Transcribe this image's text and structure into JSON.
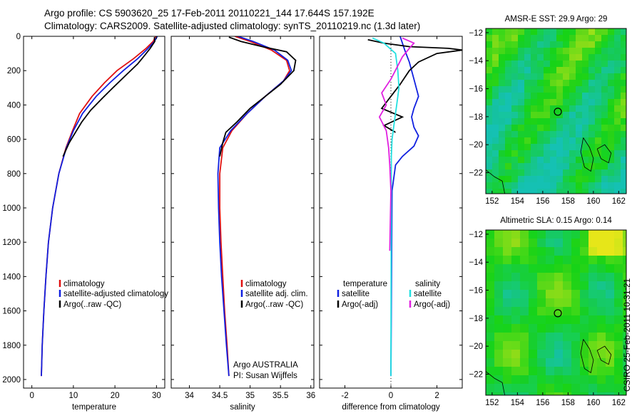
{
  "header": {
    "line1": "Argo profile: CS 5903620_25 17-Feb-2011 20110221_144 17.644S 157.192E",
    "line2": "Climatology: CARS2009. Satellite-adjusted climatology: synTS_20110219.nc (1.3d later)"
  },
  "stamp": "CSIRO 25-Feb-2011 10:31:21",
  "colors": {
    "climatology": "#e01010",
    "satellite": "#1020e0",
    "argo": "#000000",
    "salinity_sat": "#22e0e0",
    "salinity_argo": "#e020e0"
  },
  "chart_data": [
    {
      "type": "line",
      "id": "temperature",
      "xlabel": "temperature",
      "ylabel": "",
      "xlim": [
        -2,
        32
      ],
      "ylim": [
        2050,
        0
      ],
      "xticks": [
        0,
        10,
        20,
        30
      ],
      "yticks": [
        0,
        200,
        400,
        600,
        800,
        1000,
        1200,
        1400,
        1600,
        1800,
        2000
      ],
      "legend": [
        "climatology",
        "satellite-adjusted climatology",
        "Argo(..raw -QC)"
      ],
      "series": [
        {
          "name": "climatology",
          "color": "#e01010",
          "x": [
            29.8,
            29.2,
            27.5,
            24.5,
            20.5,
            17.5,
            14.5,
            11.5,
            9.8,
            8.2,
            6.5,
            5.0,
            4.0,
            3.4,
            2.9,
            2.5,
            2.3
          ],
          "y": [
            0,
            30,
            70,
            130,
            200,
            270,
            350,
            450,
            550,
            650,
            800,
            1000,
            1200,
            1400,
            1600,
            1800,
            1980
          ]
        },
        {
          "name": "satellite",
          "color": "#1020e0",
          "x": [
            30.2,
            29.5,
            28.0,
            25.5,
            22.0,
            18.8,
            15.5,
            12.2,
            10.0,
            8.3,
            6.5,
            5.0,
            4.0,
            3.4,
            2.9,
            2.5,
            2.3
          ],
          "y": [
            0,
            30,
            70,
            130,
            200,
            270,
            350,
            450,
            550,
            650,
            800,
            1000,
            1200,
            1400,
            1600,
            1800,
            1980
          ]
        },
        {
          "name": "argo",
          "color": "#000000",
          "x": [
            29.5,
            29.6,
            28.5,
            27.2,
            25.5,
            22.5,
            19.5,
            17.0,
            14.2,
            12.0,
            10.5,
            9.0,
            7.5
          ],
          "y": [
            5,
            30,
            70,
            110,
            160,
            230,
            300,
            360,
            430,
            500,
            560,
            620,
            700
          ]
        }
      ]
    },
    {
      "type": "line",
      "id": "salinity",
      "xlabel": "salinity",
      "ylabel": "",
      "xlim": [
        33.7,
        36.05
      ],
      "ylim": [
        2050,
        0
      ],
      "xticks": [
        34,
        34.5,
        35,
        35.5,
        36
      ],
      "legend": [
        "climatology",
        "satellite adj. clim.",
        "Argo(..raw -QC)"
      ],
      "annotations": [
        "Argo AUSTRALIA",
        "PI: Susan Wijffels"
      ],
      "series": [
        {
          "name": "climatology",
          "color": "#e01010",
          "x": [
            34.75,
            35.0,
            35.35,
            35.6,
            35.65,
            35.55,
            35.25,
            34.95,
            34.7,
            34.55,
            34.5,
            34.5,
            34.52,
            34.55,
            34.58,
            34.62,
            34.65
          ],
          "y": [
            0,
            30,
            80,
            140,
            200,
            260,
            350,
            450,
            550,
            650,
            800,
            1000,
            1200,
            1400,
            1600,
            1800,
            1980
          ]
        },
        {
          "name": "satellite",
          "color": "#1020e0",
          "x": [
            34.8,
            35.05,
            35.4,
            35.62,
            35.68,
            35.55,
            35.25,
            34.95,
            34.68,
            34.5,
            34.47,
            34.48,
            34.5,
            34.53,
            34.57,
            34.61,
            34.65
          ],
          "y": [
            0,
            30,
            80,
            140,
            200,
            260,
            350,
            450,
            550,
            650,
            800,
            1000,
            1200,
            1400,
            1600,
            1800,
            1980
          ]
        },
        {
          "name": "argo",
          "color": "#000000",
          "x": [
            34.65,
            34.85,
            35.2,
            35.6,
            35.75,
            35.72,
            35.5,
            35.25,
            35.0,
            34.78,
            34.6,
            34.55,
            34.5
          ],
          "y": [
            5,
            30,
            60,
            90,
            140,
            200,
            280,
            350,
            420,
            500,
            560,
            620,
            700
          ]
        }
      ]
    },
    {
      "type": "line",
      "id": "difference",
      "xlabel": "difference from climatology",
      "ylabel": "",
      "xlim": [
        -3.1,
        3.1
      ],
      "ylim": [
        2050,
        0
      ],
      "xticks": [
        -2,
        0,
        2
      ],
      "legend": [
        "temperature",
        "satellite",
        "Argo(-adj)",
        "salinity",
        "satellite",
        "Argo(-adj)"
      ],
      "series": [
        {
          "name": "temperature satellite",
          "color": "#1020e0",
          "x": [
            0.4,
            0.6,
            0.8,
            1.0,
            1.2,
            1.0,
            0.9,
            1.0,
            1.2,
            1.0,
            0.5,
            0.2,
            0.05,
            0.0
          ],
          "y": [
            0,
            80,
            150,
            250,
            350,
            420,
            470,
            530,
            580,
            640,
            700,
            750,
            900,
            1980
          ]
        },
        {
          "name": "temperature Argo",
          "color": "#000000",
          "x": [
            -1.0,
            -0.3,
            0.8,
            2.5,
            3.1,
            2.0,
            1.2,
            0.8,
            0.4,
            0.0,
            -0.4,
            0.5,
            -0.3,
            0.2
          ],
          "y": [
            20,
            40,
            60,
            70,
            80,
            100,
            150,
            200,
            280,
            350,
            420,
            470,
            520,
            560
          ]
        },
        {
          "name": "salinity satellite",
          "color": "#22e0e0",
          "x": [
            -0.8,
            -0.3,
            0.2,
            0.3,
            0.35,
            0.25,
            0.15,
            0.05,
            0.02,
            0.0
          ],
          "y": [
            10,
            40,
            100,
            200,
            300,
            400,
            500,
            600,
            700,
            1980
          ]
        },
        {
          "name": "salinity Argo",
          "color": "#e020e0",
          "x": [
            0.5,
            1.0,
            0.8,
            0.5,
            0.0,
            -0.4,
            -0.2,
            -0.5,
            -0.2,
            -0.1,
            -0.05,
            0.0,
            -0.05
          ],
          "y": [
            10,
            40,
            70,
            120,
            250,
            330,
            400,
            470,
            550,
            650,
            750,
            900,
            1250
          ]
        }
      ]
    },
    {
      "type": "heatmap",
      "id": "sst-map",
      "title": "AMSR-E SST: 29.9  Argo: 29",
      "xlim": [
        151.5,
        162.6
      ],
      "ylim": [
        -23.5,
        -11.7
      ],
      "xticks": [
        152,
        154,
        156,
        158,
        160,
        162
      ],
      "yticks": [
        -12,
        -14,
        -16,
        -18,
        -20,
        -22
      ],
      "marker": {
        "lon": 157.192,
        "lat": -17.644
      }
    },
    {
      "type": "heatmap",
      "id": "sla-map",
      "title": "Altimetric SLA: 0.15  Argo: 0.14",
      "xlim": [
        151.5,
        162.6
      ],
      "ylim": [
        -23.5,
        -11.7
      ],
      "xticks": [
        152,
        154,
        156,
        158,
        160,
        162
      ],
      "yticks": [
        -12,
        -14,
        -16,
        -18,
        -20,
        -22
      ],
      "marker": {
        "lon": 157.192,
        "lat": -17.644
      }
    }
  ]
}
